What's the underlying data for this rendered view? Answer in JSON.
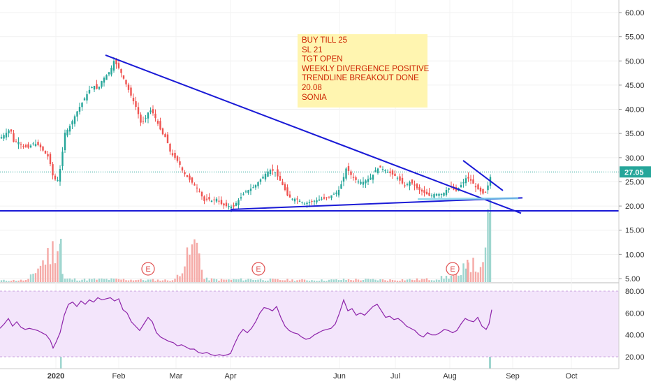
{
  "colors": {
    "up": "#26a69a",
    "down": "#ef5350",
    "trendline": "#1a1ad6",
    "rsi_line": "#8e24aa",
    "rsi_band": "#f3e5fb",
    "last_price": "#26a69a",
    "earnings": "#e05050",
    "note_bg": "#fff5b0",
    "note_text": "#cc2200"
  },
  "note": {
    "lines": [
      "BUY TILL 25",
      "SL 21",
      "TGT OPEN",
      "WEEKLY DIVERGENCE POSITIVE",
      "TRENDLINE BREAKOUT DONE",
      "20.08",
      "SONIA"
    ]
  },
  "chart_data": {
    "type": "candlestick",
    "x_axis_labels": [
      "2020",
      "Feb",
      "Mar",
      "Apr",
      "Jun",
      "Jul",
      "Aug",
      "Sep",
      "Oct"
    ],
    "price_axis": {
      "ticks": [
        "60.00",
        "55.00",
        "50.00",
        "45.00",
        "40.00",
        "35.00",
        "30.00",
        "25.00",
        "20.00",
        "15.00",
        "10.00",
        "5.00"
      ],
      "range": [
        5,
        62
      ]
    },
    "last_price": {
      "value": 27.05,
      "label": "27.05"
    },
    "earnings_markers": [
      {
        "label": "E",
        "month": "Feb"
      },
      {
        "label": "E",
        "month": "May"
      },
      {
        "label": "E",
        "month": "Aug"
      }
    ],
    "price_path": [
      [
        0,
        34
      ],
      [
        8,
        35
      ],
      [
        15,
        36
      ],
      [
        20,
        33
      ],
      [
        25,
        33.5
      ],
      [
        32,
        32.5
      ],
      [
        40,
        32
      ],
      [
        48,
        33
      ],
      [
        56,
        32.5
      ],
      [
        64,
        31
      ],
      [
        70,
        30
      ],
      [
        76,
        26
      ],
      [
        82,
        25
      ],
      [
        88,
        29
      ],
      [
        92,
        35
      ],
      [
        98,
        36
      ],
      [
        105,
        38
      ],
      [
        112,
        40
      ],
      [
        120,
        42
      ],
      [
        128,
        44
      ],
      [
        134,
        45
      ],
      [
        140,
        44
      ],
      [
        146,
        46
      ],
      [
        152,
        47
      ],
      [
        158,
        48
      ],
      [
        163,
        50
      ],
      [
        168,
        49
      ],
      [
        172,
        48
      ],
      [
        178,
        46
      ],
      [
        184,
        44
      ],
      [
        190,
        42
      ],
      [
        196,
        40
      ],
      [
        202,
        37
      ],
      [
        208,
        38
      ],
      [
        214,
        40
      ],
      [
        220,
        39
      ],
      [
        226,
        37
      ],
      [
        232,
        35
      ],
      [
        238,
        34
      ],
      [
        244,
        31
      ],
      [
        250,
        30
      ],
      [
        256,
        29
      ],
      [
        262,
        27
      ],
      [
        268,
        26
      ],
      [
        274,
        25
      ],
      [
        280,
        24
      ],
      [
        286,
        23
      ],
      [
        292,
        21
      ],
      [
        298,
        21.5
      ],
      [
        304,
        21
      ],
      [
        310,
        21.5
      ],
      [
        316,
        20.5
      ],
      [
        322,
        20
      ],
      [
        328,
        20
      ],
      [
        334,
        19.8
      ],
      [
        340,
        21
      ],
      [
        346,
        22
      ],
      [
        352,
        23
      ],
      [
        358,
        23.5
      ],
      [
        364,
        24
      ],
      [
        370,
        25
      ],
      [
        376,
        26
      ],
      [
        382,
        27
      ],
      [
        388,
        27.5
      ],
      [
        394,
        27
      ],
      [
        400,
        25.5
      ],
      [
        406,
        24
      ],
      [
        412,
        22
      ],
      [
        418,
        21.5
      ],
      [
        424,
        21.5
      ],
      [
        430,
        21
      ],
      [
        436,
        20.5
      ],
      [
        442,
        20.8
      ],
      [
        448,
        21
      ],
      [
        454,
        21.2
      ],
      [
        460,
        21.5
      ],
      [
        466,
        21.5
      ],
      [
        472,
        22
      ],
      [
        478,
        22.5
      ],
      [
        484,
        23
      ],
      [
        490,
        25
      ],
      [
        496,
        28
      ],
      [
        502,
        26.5
      ],
      [
        508,
        25.5
      ],
      [
        514,
        25
      ],
      [
        520,
        25
      ],
      [
        526,
        25.5
      ],
      [
        532,
        26
      ],
      [
        538,
        27.5
      ],
      [
        544,
        28
      ],
      [
        550,
        27.5
      ],
      [
        556,
        27
      ],
      [
        562,
        26.5
      ],
      [
        568,
        26
      ],
      [
        574,
        25
      ],
      [
        580,
        24
      ],
      [
        586,
        25
      ],
      [
        592,
        24.5
      ],
      [
        598,
        23.5
      ],
      [
        604,
        23
      ],
      [
        610,
        22.5
      ],
      [
        616,
        22
      ],
      [
        622,
        22.5
      ],
      [
        628,
        22.5
      ],
      [
        634,
        22.5
      ],
      [
        640,
        23.5
      ],
      [
        646,
        24
      ],
      [
        652,
        23
      ],
      [
        658,
        24
      ],
      [
        664,
        25
      ],
      [
        668,
        26
      ],
      [
        672,
        25.5
      ],
      [
        676,
        25
      ],
      [
        680,
        24
      ],
      [
        684,
        23.5
      ],
      [
        688,
        23
      ],
      [
        692,
        22.5
      ],
      [
        696,
        23
      ],
      [
        700,
        25
      ],
      [
        704,
        27.05
      ]
    ],
    "volume_path": [
      [
        0,
        0.5
      ],
      [
        40,
        0.6
      ],
      [
        86,
        13
      ],
      [
        90,
        1
      ],
      [
        120,
        0.8
      ],
      [
        150,
        0.9
      ],
      [
        200,
        0.7
      ],
      [
        250,
        0.6
      ],
      [
        285,
        14
      ],
      [
        290,
        1
      ],
      [
        320,
        0.7
      ],
      [
        360,
        0.9
      ],
      [
        400,
        0.7
      ],
      [
        460,
        0.6
      ],
      [
        500,
        0.8
      ],
      [
        560,
        0.7
      ],
      [
        620,
        0.9
      ],
      [
        650,
        2
      ],
      [
        660,
        1.5
      ],
      [
        668,
        9
      ],
      [
        672,
        6
      ],
      [
        680,
        5
      ],
      [
        690,
        3
      ],
      [
        696,
        10
      ],
      [
        700,
        40
      ]
    ],
    "rsi": {
      "ticks": [
        "80.00",
        "60.00",
        "40.00",
        "20.00"
      ],
      "range": [
        18,
        82
      ],
      "path": [
        [
          0,
          46
        ],
        [
          6,
          50
        ],
        [
          12,
          55
        ],
        [
          18,
          48
        ],
        [
          24,
          52
        ],
        [
          30,
          47
        ],
        [
          36,
          45
        ],
        [
          42,
          46
        ],
        [
          48,
          45
        ],
        [
          54,
          44
        ],
        [
          60,
          42
        ],
        [
          66,
          40
        ],
        [
          72,
          35
        ],
        [
          76,
          28
        ],
        [
          80,
          33
        ],
        [
          86,
          42
        ],
        [
          92,
          58
        ],
        [
          98,
          68
        ],
        [
          104,
          70
        ],
        [
          110,
          66
        ],
        [
          116,
          71
        ],
        [
          122,
          68
        ],
        [
          128,
          72
        ],
        [
          134,
          70
        ],
        [
          140,
          74
        ],
        [
          146,
          72
        ],
        [
          152,
          73
        ],
        [
          158,
          74
        ],
        [
          164,
          71
        ],
        [
          170,
          73
        ],
        [
          176,
          63
        ],
        [
          182,
          60
        ],
        [
          188,
          52
        ],
        [
          194,
          48
        ],
        [
          200,
          44
        ],
        [
          206,
          50
        ],
        [
          212,
          56
        ],
        [
          218,
          52
        ],
        [
          224,
          42
        ],
        [
          230,
          38
        ],
        [
          236,
          36
        ],
        [
          242,
          34
        ],
        [
          248,
          33
        ],
        [
          254,
          30
        ],
        [
          260,
          31
        ],
        [
          266,
          29
        ],
        [
          272,
          27
        ],
        [
          278,
          27
        ],
        [
          284,
          24
        ],
        [
          290,
          23
        ],
        [
          296,
          24
        ],
        [
          302,
          22
        ],
        [
          308,
          21
        ],
        [
          314,
          22
        ],
        [
          320,
          21
        ],
        [
          326,
          22
        ],
        [
          330,
          23
        ],
        [
          336,
          32
        ],
        [
          342,
          40
        ],
        [
          348,
          45
        ],
        [
          354,
          42
        ],
        [
          360,
          46
        ],
        [
          366,
          52
        ],
        [
          372,
          60
        ],
        [
          378,
          65
        ],
        [
          384,
          64
        ],
        [
          390,
          62
        ],
        [
          396,
          66
        ],
        [
          402,
          56
        ],
        [
          408,
          48
        ],
        [
          414,
          44
        ],
        [
          420,
          42
        ],
        [
          426,
          41
        ],
        [
          432,
          38
        ],
        [
          438,
          36
        ],
        [
          444,
          37
        ],
        [
          450,
          40
        ],
        [
          456,
          42
        ],
        [
          462,
          44
        ],
        [
          468,
          45
        ],
        [
          474,
          46
        ],
        [
          480,
          50
        ],
        [
          486,
          60
        ],
        [
          492,
          72
        ],
        [
          498,
          62
        ],
        [
          504,
          64
        ],
        [
          510,
          58
        ],
        [
          516,
          60
        ],
        [
          522,
          58
        ],
        [
          528,
          62
        ],
        [
          534,
          66
        ],
        [
          540,
          68
        ],
        [
          546,
          62
        ],
        [
          552,
          56
        ],
        [
          558,
          57
        ],
        [
          564,
          54
        ],
        [
          570,
          55
        ],
        [
          576,
          52
        ],
        [
          582,
          48
        ],
        [
          588,
          46
        ],
        [
          594,
          44
        ],
        [
          600,
          40
        ],
        [
          606,
          38
        ],
        [
          612,
          42
        ],
        [
          618,
          40
        ],
        [
          624,
          40
        ],
        [
          630,
          42
        ],
        [
          636,
          45
        ],
        [
          642,
          44
        ],
        [
          648,
          42
        ],
        [
          654,
          44
        ],
        [
          660,
          50
        ],
        [
          666,
          55
        ],
        [
          672,
          53
        ],
        [
          678,
          52
        ],
        [
          684,
          56
        ],
        [
          690,
          48
        ],
        [
          696,
          45
        ],
        [
          700,
          50
        ],
        [
          704,
          63
        ]
      ]
    }
  }
}
